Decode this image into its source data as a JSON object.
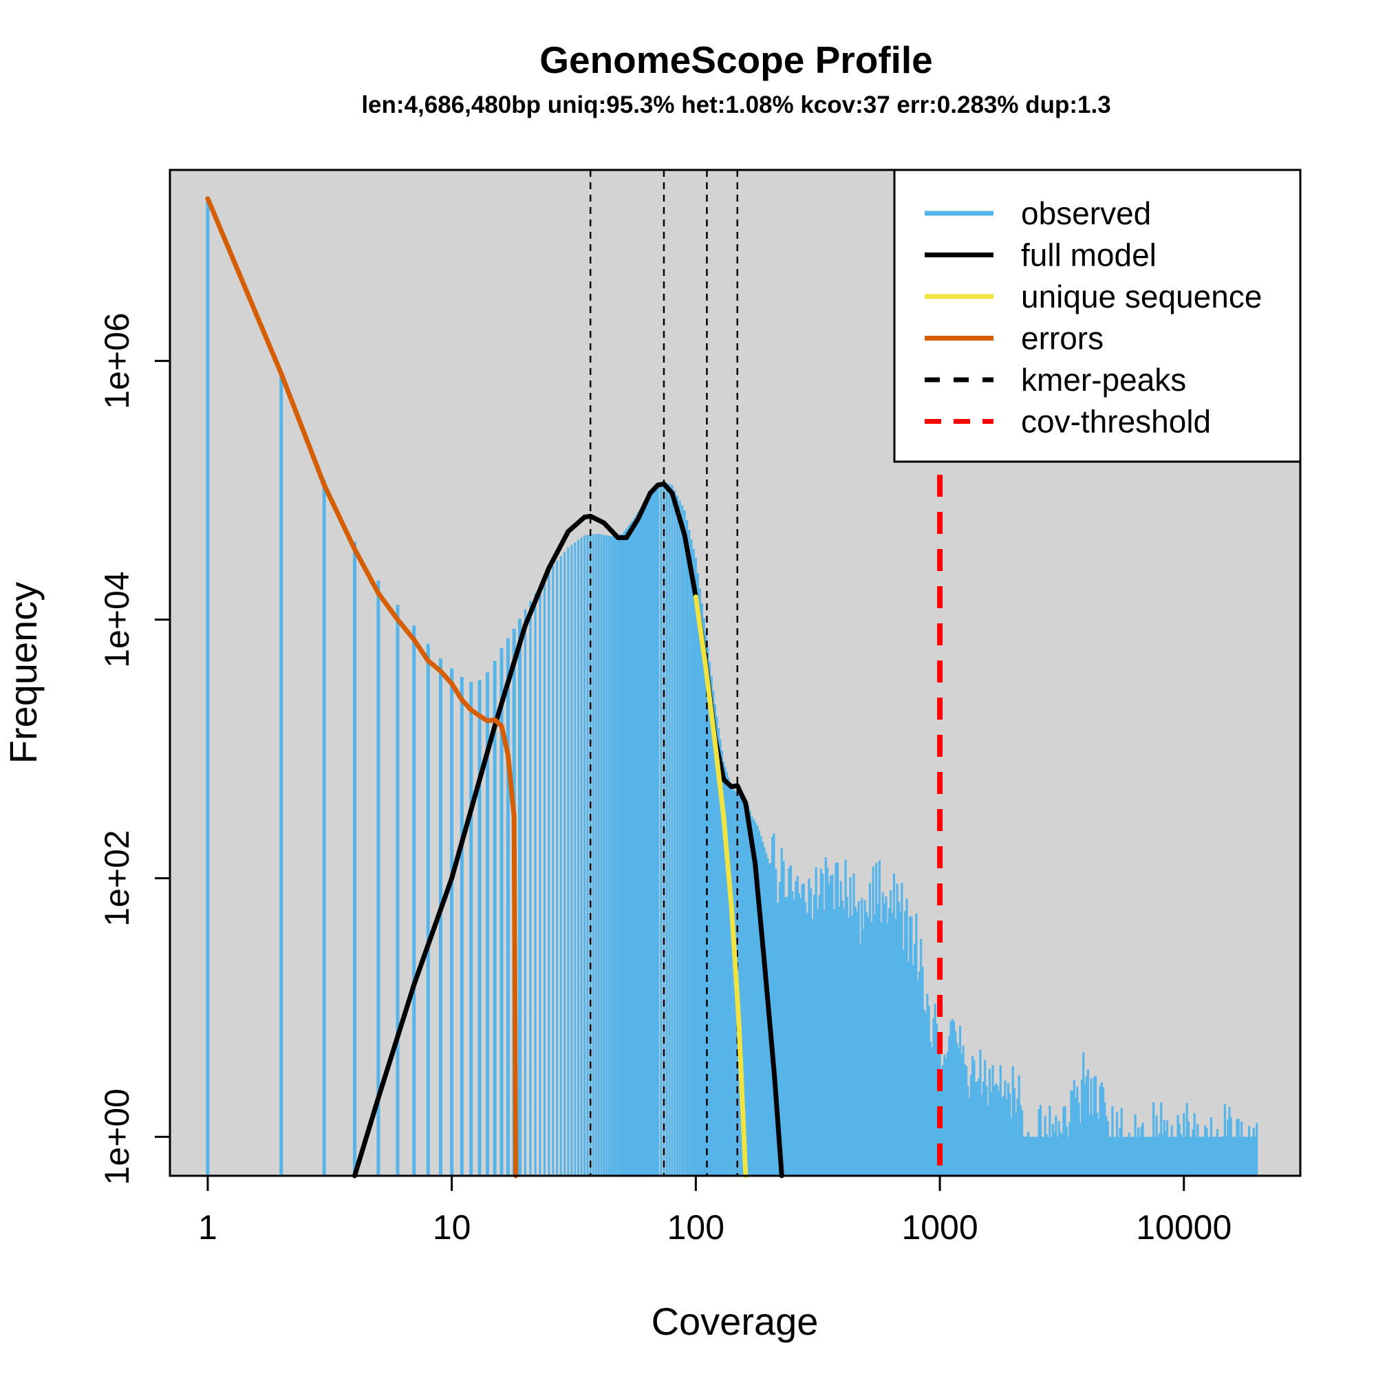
{
  "chart_data": {
    "type": "line",
    "title": "GenomeScope Profile",
    "subtitle": "len:4,686,480bp uniq:95.3% het:1.08% kcov:37 err:0.283% dup:1.3",
    "xlabel": "Coverage",
    "ylabel": "Frequency",
    "x_scale": "log",
    "y_scale": "log",
    "xlim": [
      0.7,
      30000
    ],
    "ylim": [
      0.5,
      30000000
    ],
    "x_ticks": [
      {
        "value": 1,
        "label": "1"
      },
      {
        "value": 10,
        "label": "10"
      },
      {
        "value": 100,
        "label": "100"
      },
      {
        "value": 1000,
        "label": "1000"
      },
      {
        "value": 10000,
        "label": "10000"
      }
    ],
    "y_ticks": [
      {
        "value": 1,
        "label": "1e+00"
      },
      {
        "value": 100,
        "label": "1e+02"
      },
      {
        "value": 10000,
        "label": "1e+04"
      },
      {
        "value": 1000000,
        "label": "1e+06"
      }
    ],
    "grid": false,
    "background": "#d3d3d3",
    "legend": {
      "placement": "top-right",
      "entries": [
        {
          "label": "observed",
          "color": "#56b4e9",
          "style": "solid"
        },
        {
          "label": "full model",
          "color": "#000000",
          "style": "solid"
        },
        {
          "label": "unique sequence",
          "color": "#f0e442",
          "style": "solid"
        },
        {
          "label": "errors",
          "color": "#d55e00",
          "style": "solid"
        },
        {
          "label": "kmer-peaks",
          "color": "#000000",
          "style": "dashed"
        },
        {
          "label": "cov-threshold",
          "color": "#ff0000",
          "style": "dashed"
        }
      ]
    },
    "kmer_peaks": [
      37,
      74,
      111,
      148
    ],
    "cov_threshold": 1000,
    "series": [
      {
        "name": "observed",
        "color": "#56b4e9",
        "style": "histogram",
        "points": [
          [
            1,
            18000000
          ],
          [
            2,
            800000
          ],
          [
            3,
            120000
          ],
          [
            4,
            40000
          ],
          [
            5,
            20000
          ],
          [
            6,
            13000
          ],
          [
            7,
            9000
          ],
          [
            8,
            6500
          ],
          [
            9,
            5000
          ],
          [
            10,
            4200
          ],
          [
            11,
            3600
          ],
          [
            12,
            3300
          ],
          [
            13,
            3400
          ],
          [
            14,
            3900
          ],
          [
            15,
            4800
          ],
          [
            16,
            6000
          ],
          [
            18,
            8500
          ],
          [
            20,
            12000
          ],
          [
            22,
            16000
          ],
          [
            25,
            24000
          ],
          [
            30,
            36000
          ],
          [
            35,
            45000
          ],
          [
            40,
            46000
          ],
          [
            45,
            44000
          ],
          [
            50,
            46000
          ],
          [
            55,
            58000
          ],
          [
            60,
            75000
          ],
          [
            65,
            95000
          ],
          [
            70,
            110000
          ],
          [
            75,
            115000
          ],
          [
            80,
            110000
          ],
          [
            90,
            70000
          ],
          [
            100,
            30000
          ],
          [
            110,
            8000
          ],
          [
            120,
            2200
          ],
          [
            130,
            800
          ],
          [
            140,
            500
          ],
          [
            150,
            450
          ],
          [
            160,
            420
          ],
          [
            170,
            300
          ],
          [
            180,
            250
          ],
          [
            200,
            130
          ],
          [
            250,
            90
          ],
          [
            300,
            70
          ],
          [
            350,
            110
          ],
          [
            400,
            80
          ],
          [
            450,
            60
          ],
          [
            500,
            55
          ],
          [
            550,
            90
          ],
          [
            600,
            60
          ],
          [
            700,
            55
          ],
          [
            800,
            30
          ],
          [
            900,
            10
          ],
          [
            1000,
            5
          ],
          [
            1200,
            4
          ],
          [
            1500,
            3
          ],
          [
            2000,
            2
          ],
          [
            2500,
            1
          ],
          [
            3000,
            1
          ],
          [
            4000,
            3
          ],
          [
            5000,
            1
          ],
          [
            10000,
            1
          ],
          [
            20000,
            1
          ]
        ]
      },
      {
        "name": "full model",
        "color": "#000000",
        "points": [
          [
            4,
            0.5
          ],
          [
            5,
            2
          ],
          [
            7,
            15
          ],
          [
            10,
            100
          ],
          [
            15,
            1500
          ],
          [
            20,
            9000
          ],
          [
            25,
            25000
          ],
          [
            30,
            48000
          ],
          [
            35,
            62000
          ],
          [
            37,
            63000
          ],
          [
            42,
            56000
          ],
          [
            48,
            43000
          ],
          [
            52,
            43000
          ],
          [
            58,
            60000
          ],
          [
            65,
            95000
          ],
          [
            70,
            110000
          ],
          [
            74,
            112000
          ],
          [
            80,
            95000
          ],
          [
            90,
            45000
          ],
          [
            100,
            15000
          ],
          [
            110,
            4500
          ],
          [
            120,
            1200
          ],
          [
            130,
            580
          ],
          [
            140,
            510
          ],
          [
            148,
            520
          ],
          [
            160,
            380
          ],
          [
            175,
            130
          ],
          [
            190,
            25
          ],
          [
            210,
            3
          ],
          [
            225,
            0.5
          ]
        ]
      },
      {
        "name": "unique sequence",
        "color": "#f0e442",
        "points": [
          [
            100,
            15000
          ],
          [
            110,
            4200
          ],
          [
            120,
            1100
          ],
          [
            130,
            300
          ],
          [
            140,
            60
          ],
          [
            150,
            8
          ],
          [
            160,
            0.5
          ]
        ]
      },
      {
        "name": "errors",
        "color": "#d55e00",
        "points": [
          [
            1,
            18000000
          ],
          [
            2,
            800000
          ],
          [
            3,
            110000
          ],
          [
            4,
            35000
          ],
          [
            5,
            16000
          ],
          [
            6,
            10000
          ],
          [
            7,
            7000
          ],
          [
            8,
            4800
          ],
          [
            9,
            4000
          ],
          [
            10,
            3200
          ],
          [
            11,
            2400
          ],
          [
            12,
            2000
          ],
          [
            13,
            1800
          ],
          [
            14,
            1650
          ],
          [
            15,
            1680
          ],
          [
            16,
            1500
          ],
          [
            17,
            900
          ],
          [
            18,
            300
          ],
          [
            18.3,
            0.5
          ]
        ]
      }
    ]
  }
}
